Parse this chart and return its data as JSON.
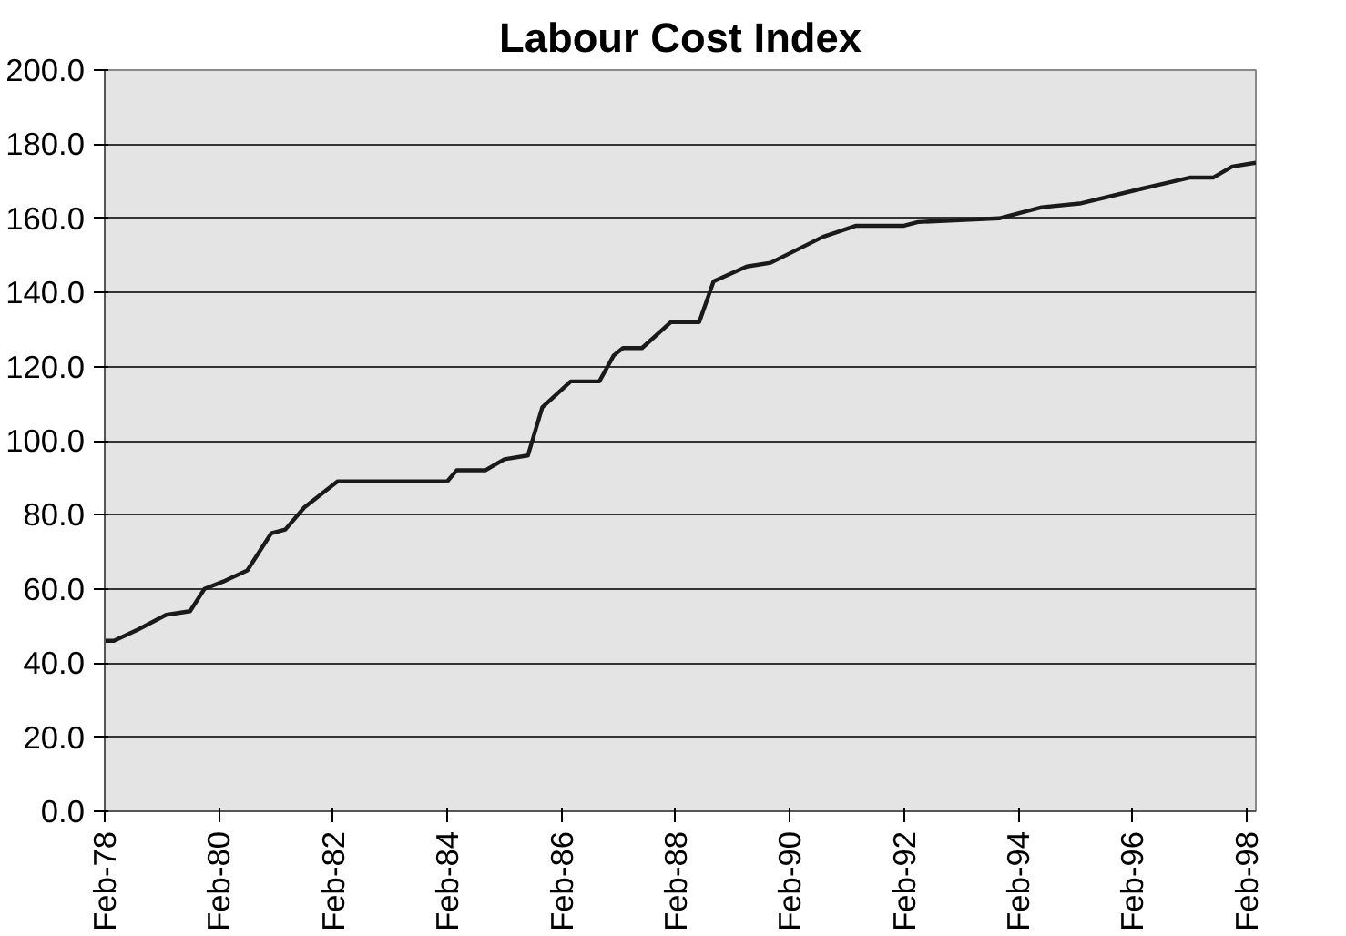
{
  "chart_data": {
    "type": "line",
    "title": "Labour Cost Index",
    "x": [
      "1978-02",
      "1978-04",
      "1978-09",
      "1979-03",
      "1979-08",
      "1979-11",
      "1980-03",
      "1980-08",
      "1981-01",
      "1981-04",
      "1981-08",
      "1982-03",
      "1984-02",
      "1984-04",
      "1984-10",
      "1985-02",
      "1985-07",
      "1985-10",
      "1986-04",
      "1986-10",
      "1987-01",
      "1987-03",
      "1987-07",
      "1988-01",
      "1988-07",
      "1988-10",
      "1989-05",
      "1989-10",
      "1990-09",
      "1991-04",
      "1992-02",
      "1992-05",
      "1993-10",
      "1994-07",
      "1995-03",
      "1996-04",
      "1997-02",
      "1997-07",
      "1997-11",
      "1998-04"
    ],
    "series": [
      {
        "color": "#1a1a1a",
        "values": [
          46,
          46,
          49,
          53,
          54,
          60,
          62,
          65,
          75,
          76,
          82,
          89,
          89,
          92,
          92,
          95,
          96,
          109,
          116,
          116,
          123,
          125,
          125,
          132,
          132,
          143,
          147,
          148,
          155,
          158,
          158,
          159,
          160,
          163,
          164,
          168,
          171,
          171,
          174,
          175
        ]
      }
    ],
    "xlim": [
      "1978-02",
      "1998-04"
    ],
    "xticks": [
      {
        "value": "1978-02",
        "label": "Feb-78"
      },
      {
        "value": "1980-02",
        "label": "Feb-80"
      },
      {
        "value": "1982-02",
        "label": "Feb-82"
      },
      {
        "value": "1984-02",
        "label": "Feb-84"
      },
      {
        "value": "1986-02",
        "label": "Feb-86"
      },
      {
        "value": "1988-02",
        "label": "Feb-88"
      },
      {
        "value": "1990-02",
        "label": "Feb-90"
      },
      {
        "value": "1992-02",
        "label": "Feb-92"
      },
      {
        "value": "1994-02",
        "label": "Feb-94"
      },
      {
        "value": "1996-02",
        "label": "Feb-96"
      },
      {
        "value": "1998-02",
        "label": "Feb-98"
      }
    ],
    "ylim": [
      0,
      200
    ],
    "yticks": [
      {
        "value": 0,
        "label": "0.0"
      },
      {
        "value": 20,
        "label": "20.0"
      },
      {
        "value": 40,
        "label": "40.0"
      },
      {
        "value": 60,
        "label": "60.0"
      },
      {
        "value": 80,
        "label": "80.0"
      },
      {
        "value": 100,
        "label": "100.0"
      },
      {
        "value": 120,
        "label": "120.0"
      },
      {
        "value": 140,
        "label": "140.0"
      },
      {
        "value": 160,
        "label": "160.0"
      },
      {
        "value": 180,
        "label": "180.0"
      },
      {
        "value": 200,
        "label": "200.0"
      }
    ],
    "grid": "y",
    "marker": "none",
    "line_style": "solid"
  }
}
